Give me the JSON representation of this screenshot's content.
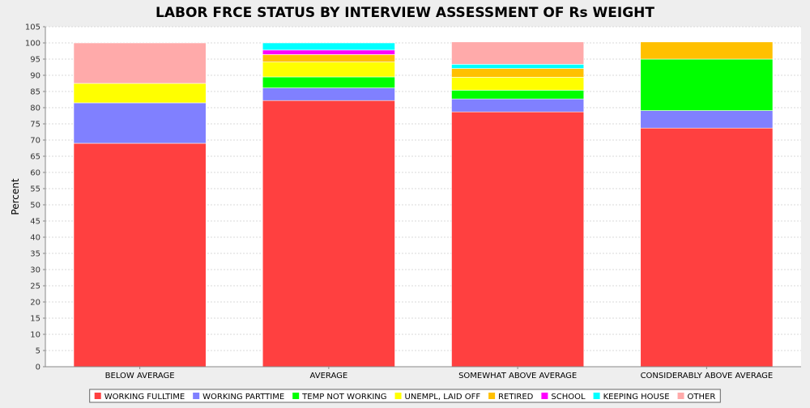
{
  "chart_data": {
    "type": "bar",
    "stacked": true,
    "title": "LABOR FRCE STATUS BY INTERVIEW ASSESSMENT OF Rs WEIGHT",
    "xlabel": "",
    "ylabel": "Percent",
    "ylim": [
      0,
      105
    ],
    "ytick_step": 5,
    "grid": true,
    "legend_position": "bottom",
    "background": "#eeeeee",
    "plot_background": "#ffffff",
    "categories": [
      "BELOW AVERAGE",
      "AVERAGE",
      "SOMEWHAT ABOVE AVERAGE",
      "CONSIDERABLY ABOVE AVERAGE"
    ],
    "series": [
      {
        "name": "WORKING FULLTIME",
        "color": "#ff4040",
        "values": [
          69.0,
          82.2,
          78.7,
          73.7
        ]
      },
      {
        "name": "WORKING PARTTIME",
        "color": "#8080ff",
        "values": [
          12.5,
          3.9,
          4.0,
          5.4
        ]
      },
      {
        "name": "TEMP NOT WORKING",
        "color": "#00ff00",
        "values": [
          0.0,
          3.4,
          2.7,
          15.9
        ]
      },
      {
        "name": "UNEMPL, LAID OFF",
        "color": "#ffff00",
        "values": [
          6.0,
          4.6,
          4.0,
          0.0
        ]
      },
      {
        "name": "RETIRED",
        "color": "#ffc000",
        "values": [
          0.0,
          2.3,
          2.7,
          5.3
        ]
      },
      {
        "name": "SCHOOL",
        "color": "#ff00ff",
        "values": [
          0.0,
          1.4,
          0.0,
          0.0
        ]
      },
      {
        "name": "KEEPING HOUSE",
        "color": "#00ffff",
        "values": [
          0.0,
          2.2,
          1.3,
          0.0
        ]
      },
      {
        "name": "OTHER",
        "color": "#ffaaaa",
        "values": [
          12.5,
          0.0,
          6.9,
          0.0
        ]
      }
    ]
  }
}
